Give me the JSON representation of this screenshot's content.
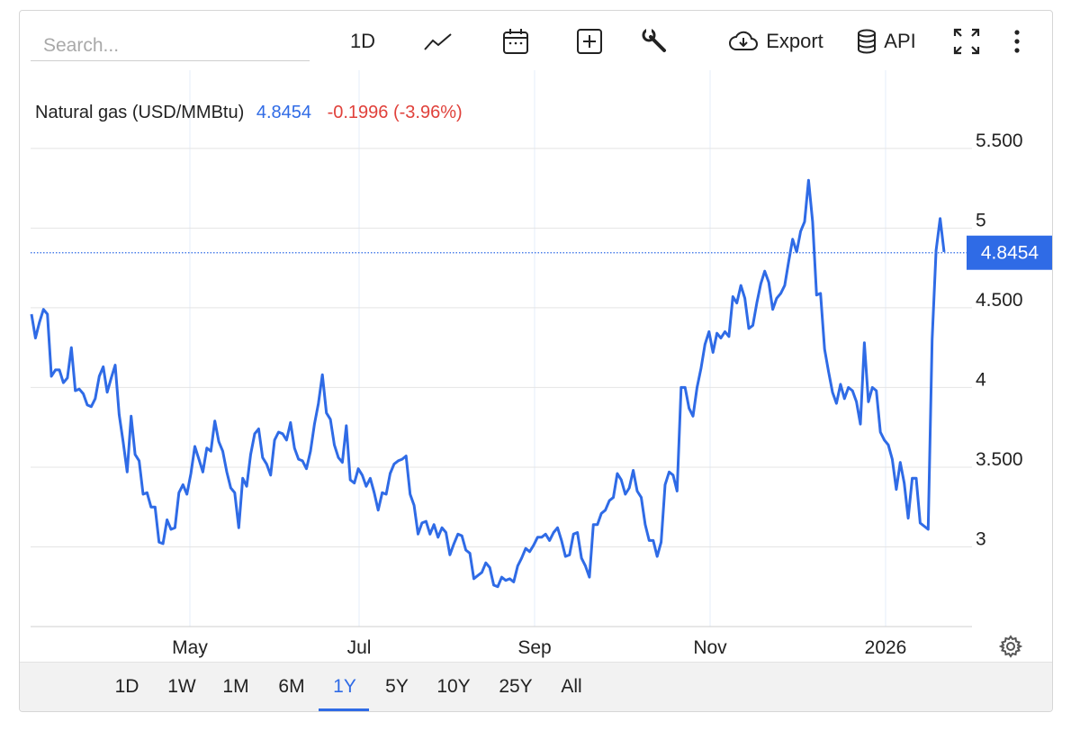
{
  "toolbar": {
    "search_placeholder": "Search...",
    "interval_label": "1D",
    "chart_type_icon": "line-chart-icon",
    "calendar_icon": "calendar-icon",
    "compare_icon": "plus-square-icon",
    "indicators_icon": "wrench-icon",
    "export_label": "Export",
    "api_label": "API",
    "fullscreen_icon": "fullscreen-icon",
    "more_icon": "more-vertical-icon"
  },
  "header": {
    "instrument": "Natural gas (USD/MMBtu)",
    "price": "4.8454",
    "change": "-0.1996 (-3.96%)"
  },
  "last_price_label": "4.8454",
  "ranges": [
    "1D",
    "1W",
    "1M",
    "6M",
    "1Y",
    "5Y",
    "10Y",
    "25Y",
    "All"
  ],
  "active_range": "1Y",
  "colors": {
    "line": "#2f6be6",
    "price_up": "#2f6be6",
    "price_down": "#e0413b",
    "grid": "#e4e4e4",
    "badge": "#2f6be6"
  },
  "chart_data": {
    "type": "line",
    "title": "Natural gas (USD/MMBtu)",
    "xlabel": "",
    "ylabel": "",
    "x_ticks": [
      "May",
      "Jul",
      "Sep",
      "Nov",
      "2026"
    ],
    "y_ticks": [
      "3",
      "3.500",
      "4",
      "4.500",
      "5",
      "5.500"
    ],
    "y_tick_values": [
      3,
      3.5,
      4,
      4.5,
      5,
      5.5
    ],
    "ylim": [
      2.5,
      5.9
    ],
    "grid": true,
    "last_value": 4.8454,
    "series": [
      {
        "values": [
          4.46,
          4.31,
          4.41,
          4.49,
          4.46,
          4.07,
          4.11,
          4.11,
          4.03,
          4.06,
          4.25,
          3.98,
          3.99,
          3.96,
          3.89,
          3.88,
          3.93,
          4.07,
          4.13,
          3.97,
          4.06,
          4.14,
          3.83,
          3.66,
          3.47,
          3.82,
          3.58,
          3.54,
          3.33,
          3.34,
          3.25,
          3.25,
          3.03,
          3.02,
          3.17,
          3.11,
          3.12,
          3.34,
          3.39,
          3.33,
          3.46,
          3.63,
          3.55,
          3.47,
          3.62,
          3.6,
          3.79,
          3.66,
          3.6,
          3.47,
          3.37,
          3.34,
          3.12,
          3.43,
          3.38,
          3.58,
          3.71,
          3.74,
          3.56,
          3.52,
          3.45,
          3.67,
          3.72,
          3.71,
          3.67,
          3.78,
          3.62,
          3.55,
          3.54,
          3.49,
          3.6,
          3.77,
          3.9,
          4.08,
          3.84,
          3.8,
          3.64,
          3.56,
          3.53,
          3.76,
          3.42,
          3.4,
          3.49,
          3.45,
          3.38,
          3.43,
          3.34,
          3.23,
          3.34,
          3.33,
          3.46,
          3.52,
          3.54,
          3.55,
          3.57,
          3.33,
          3.26,
          3.08,
          3.15,
          3.16,
          3.08,
          3.14,
          3.06,
          3.12,
          3.09,
          2.95,
          3.02,
          3.08,
          3.07,
          2.98,
          2.96,
          2.8,
          2.82,
          2.84,
          2.9,
          2.87,
          2.76,
          2.75,
          2.81,
          2.79,
          2.8,
          2.78,
          2.88,
          2.93,
          2.99,
          2.97,
          3.01,
          3.06,
          3.06,
          3.08,
          3.04,
          3.09,
          3.12,
          3.04,
          2.94,
          2.95,
          3.08,
          3.09,
          2.93,
          2.88,
          2.81,
          3.14,
          3.14,
          3.21,
          3.23,
          3.29,
          3.31,
          3.46,
          3.42,
          3.33,
          3.37,
          3.48,
          3.35,
          3.31,
          3.14,
          3.04,
          3.04,
          2.94,
          3.03,
          3.39,
          3.47,
          3.45,
          3.35,
          4.0,
          4.0,
          3.87,
          3.82,
          4.0,
          4.12,
          4.27,
          4.35,
          4.22,
          4.34,
          4.31,
          4.35,
          4.32,
          4.57,
          4.53,
          4.64,
          4.56,
          4.37,
          4.39,
          4.53,
          4.65,
          4.73,
          4.66,
          4.49,
          4.56,
          4.59,
          4.64,
          4.79,
          4.93,
          4.85,
          4.98,
          5.04,
          5.3,
          5.04,
          4.58,
          4.59,
          4.24,
          4.1,
          3.97,
          3.9,
          4.02,
          3.93,
          4.0,
          3.98,
          3.91,
          3.77,
          4.28,
          3.91,
          4.0,
          3.98,
          3.72,
          3.67,
          3.64,
          3.55,
          3.36,
          3.53,
          3.4,
          3.18,
          3.43,
          3.43,
          3.15,
          3.13,
          3.11,
          4.3,
          4.86,
          5.06,
          4.85
        ]
      }
    ]
  }
}
